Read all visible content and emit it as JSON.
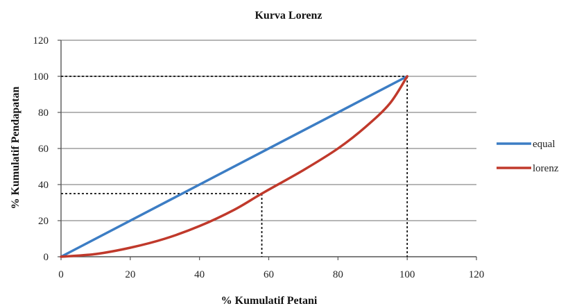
{
  "chart_data": {
    "type": "line",
    "title": "Kurva Lorenz",
    "xlabel": "% Kumulatif Petani",
    "ylabel": "% Kumulatif Pendapatan",
    "xlim": [
      0,
      120
    ],
    "ylim": [
      0,
      120
    ],
    "x_ticks": [
      "0",
      "20",
      "40",
      "60",
      "80",
      "100",
      "120"
    ],
    "y_ticks": [
      "0",
      "20",
      "40",
      "60",
      "80",
      "100",
      "120"
    ],
    "grid": "horizontal",
    "legend_position": "right",
    "series": [
      {
        "name": "equal",
        "color": "#3c7dc4",
        "points": [
          [
            0,
            0
          ],
          [
            100,
            100
          ]
        ]
      },
      {
        "name": "lorenz",
        "color": "#c0392b",
        "points": [
          [
            0,
            0
          ],
          [
            10,
            1.5
          ],
          [
            20,
            5
          ],
          [
            30,
            10
          ],
          [
            40,
            17
          ],
          [
            50,
            26
          ],
          [
            58,
            35
          ],
          [
            70,
            48
          ],
          [
            80,
            60
          ],
          [
            88,
            72
          ],
          [
            95,
            85
          ],
          [
            100,
            100
          ]
        ]
      }
    ],
    "reference_lines": [
      {
        "point": [
          58,
          35
        ]
      },
      {
        "point": [
          100,
          100
        ]
      }
    ]
  }
}
